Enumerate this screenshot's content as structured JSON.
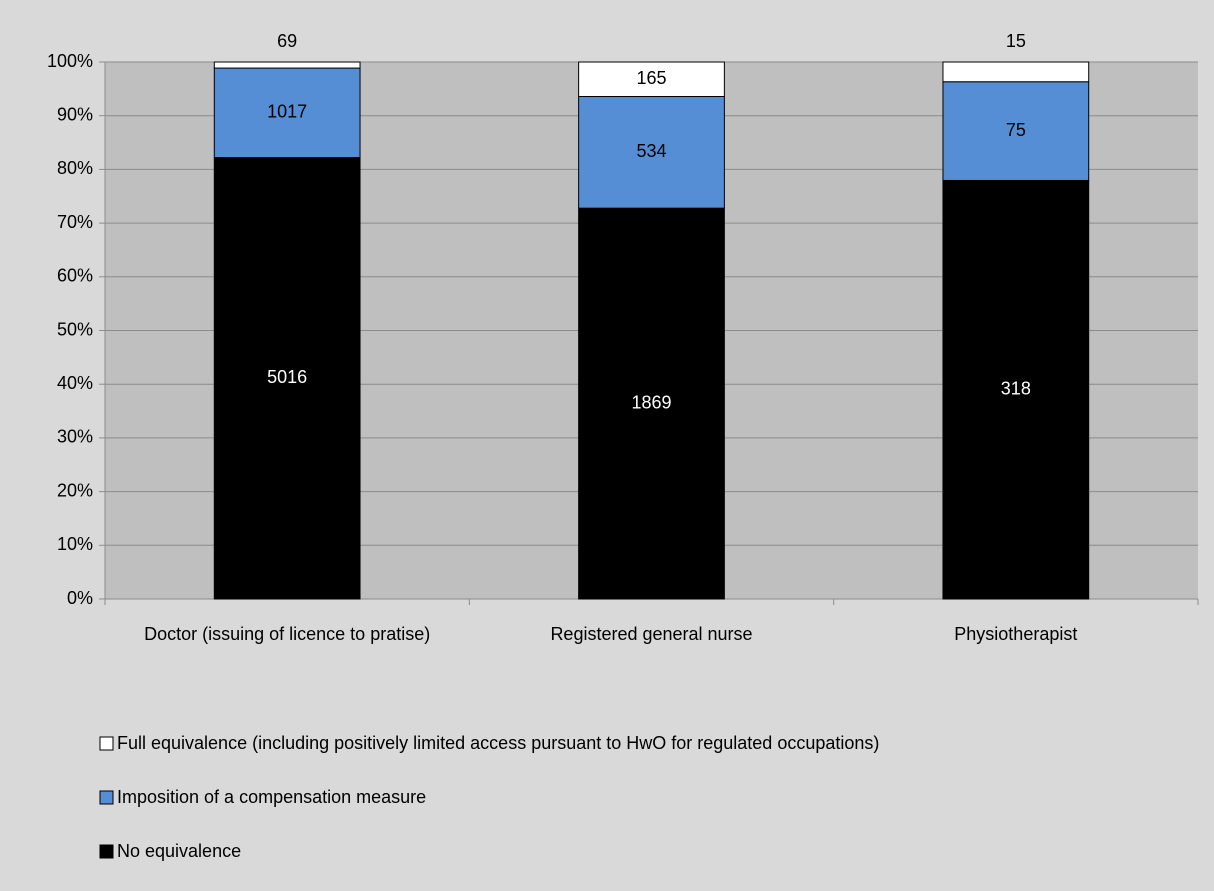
{
  "chart_data": {
    "type": "bar",
    "stacked": "percent",
    "categories": [
      "Doctor (issuing of licence to pratise)",
      "Registered general nurse",
      "Physiotherapist"
    ],
    "series": [
      {
        "name": "No equivalence",
        "color": "#000000",
        "values": [
          5016,
          1869,
          318
        ]
      },
      {
        "name": "Imposition of a compensation measure",
        "color": "#558ed5",
        "values": [
          1017,
          534,
          75
        ]
      },
      {
        "name": "Full equivalence (including positively limited access pursuant to HwO for regulated occupations)",
        "color": "#ffffff",
        "values": [
          69,
          165,
          15
        ]
      }
    ],
    "ylim": [
      0,
      100
    ],
    "yticks": [
      {
        "value": 0,
        "label": "0%"
      },
      {
        "value": 10,
        "label": "10%"
      },
      {
        "value": 20,
        "label": "20%"
      },
      {
        "value": 30,
        "label": "30%"
      },
      {
        "value": 40,
        "label": "40%"
      },
      {
        "value": 50,
        "label": "50%"
      },
      {
        "value": 60,
        "label": "60%"
      },
      {
        "value": 70,
        "label": "70%"
      },
      {
        "value": 80,
        "label": "80%"
      },
      {
        "value": 90,
        "label": "90%"
      },
      {
        "value": 100,
        "label": "100%"
      }
    ],
    "grid": true,
    "legend": "bottom-left"
  }
}
